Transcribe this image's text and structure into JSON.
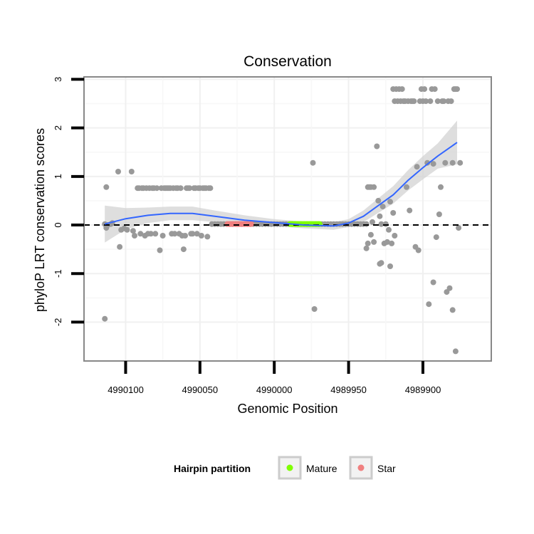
{
  "chart_data": {
    "type": "scatter",
    "title": "Conservation",
    "xlabel": "Genomic Position",
    "ylabel": "phyloP LRT conservation scores",
    "x_reversed": true,
    "xlim": [
      4990128,
      4989854
    ],
    "ylim": [
      -2.8,
      3.05
    ],
    "x_ticks": [
      4990100,
      4990050,
      4990000,
      4989950,
      4989900
    ],
    "x_tick_labels": [
      "4990100",
      "4990050",
      "4990000",
      "4989950",
      "4989900"
    ],
    "y_ticks": [
      -2,
      -1,
      0,
      1,
      2,
      3
    ],
    "y_tick_labels": [
      "-2",
      "-1",
      "0",
      "1",
      "2",
      "3"
    ],
    "reference_line": {
      "y": 0,
      "style": "dashed",
      "color": "#000000"
    },
    "grid": true,
    "legend": {
      "title": "Hairpin partition",
      "position": "bottom",
      "entries": [
        {
          "label": "Mature",
          "color": "#7FFF00"
        },
        {
          "label": "Star",
          "color": "#F08080"
        }
      ]
    },
    "colors": {
      "points": "#999999",
      "smooth": "#3366FF",
      "ribbon": "#D3D3D3",
      "mature": "#7FFF00",
      "star": "#F08080"
    },
    "series": [
      {
        "name": "scores",
        "type": "scatter",
        "points": [
          [
            4990114,
            -1.93
          ],
          [
            4990114,
            0.02
          ],
          [
            4990113,
            0.78
          ],
          [
            4990113,
            -0.06
          ],
          [
            4990112,
            0.0
          ],
          [
            4990110,
            0.02
          ],
          [
            4990109,
            0.04
          ],
          [
            4990105,
            1.1
          ],
          [
            4990104,
            -0.45
          ],
          [
            4990103,
            -0.1
          ],
          [
            4990101,
            -0.07
          ],
          [
            4990099,
            -0.1
          ],
          [
            4990096,
            1.1
          ],
          [
            4990095,
            -0.12
          ],
          [
            4990094,
            -0.22
          ],
          [
            4990092,
            0.76
          ],
          [
            4990091,
            0.76
          ],
          [
            4990090,
            -0.18
          ],
          [
            4990089,
            0.76
          ],
          [
            4990088,
            0.76
          ],
          [
            4990087,
            -0.22
          ],
          [
            4990086,
            0.76
          ],
          [
            4990085,
            -0.18
          ],
          [
            4990084,
            0.76
          ],
          [
            4990083,
            -0.18
          ],
          [
            4990082,
            0.76
          ],
          [
            4990081,
            0.76
          ],
          [
            4990080,
            -0.18
          ],
          [
            4990079,
            0.76
          ],
          [
            4990077,
            -0.52
          ],
          [
            4990076,
            0.76
          ],
          [
            4990075,
            -0.22
          ],
          [
            4990074,
            0.76
          ],
          [
            4990073,
            0.76
          ],
          [
            4990072,
            0.76
          ],
          [
            4990071,
            0.76
          ],
          [
            4990070,
            0.76
          ],
          [
            4990069,
            -0.18
          ],
          [
            4990068,
            0.76
          ],
          [
            4990067,
            -0.18
          ],
          [
            4990066,
            0.76
          ],
          [
            4990065,
            0.76
          ],
          [
            4990064,
            -0.18
          ],
          [
            4990063,
            0.76
          ],
          [
            4990062,
            -0.22
          ],
          [
            4990061,
            -0.5
          ],
          [
            4990060,
            -0.22
          ],
          [
            4990059,
            0.76
          ],
          [
            4990058,
            0.76
          ],
          [
            4990057,
            0.76
          ],
          [
            4990056,
            -0.18
          ],
          [
            4990055,
            -0.18
          ],
          [
            4990054,
            0.76
          ],
          [
            4990053,
            0.76
          ],
          [
            4990052,
            -0.18
          ],
          [
            4990051,
            0.76
          ],
          [
            4990050,
            0.76
          ],
          [
            4990049,
            -0.22
          ],
          [
            4990048,
            0.76
          ],
          [
            4990047,
            0.76
          ],
          [
            4990046,
            0.76
          ],
          [
            4990045,
            -0.24
          ],
          [
            4990044,
            0.76
          ],
          [
            4990043,
            0.76
          ],
          [
            4990042,
            0.02
          ],
          [
            4990040,
            0.02
          ],
          [
            4990038,
            0.02
          ],
          [
            4990036,
            0.02
          ],
          [
            4990034,
            0.02
          ],
          [
            4990032,
            0.02
          ],
          [
            4990030,
            0.02
          ],
          [
            4990028,
            0.02
          ],
          [
            4990026,
            0.02
          ],
          [
            4990024,
            0.02
          ],
          [
            4990022,
            0.02
          ],
          [
            4990020,
            0.02
          ],
          [
            4990018,
            0.02
          ],
          [
            4990016,
            0.02
          ],
          [
            4990014,
            0.02
          ],
          [
            4990012,
            0.02
          ],
          [
            4990010,
            0.02
          ],
          [
            4990008,
            0.02
          ],
          [
            4990006,
            0.02
          ],
          [
            4990004,
            0.02
          ],
          [
            4990002,
            0.02
          ],
          [
            4990000,
            0.02
          ],
          [
            4989998,
            0.02
          ],
          [
            4989996,
            0.02
          ],
          [
            4989994,
            0.02
          ],
          [
            4989992,
            0.02
          ],
          [
            4989990,
            0.02
          ],
          [
            4989988,
            0.02
          ],
          [
            4989986,
            0.02
          ],
          [
            4989984,
            0.02
          ],
          [
            4989982,
            0.02
          ],
          [
            4989980,
            0.02
          ],
          [
            4989978,
            0.02
          ],
          [
            4989976,
            0.02
          ],
          [
            4989974,
            0.02
          ],
          [
            4989972,
            0.02
          ],
          [
            4989970,
            0.02
          ],
          [
            4989968,
            0.02
          ],
          [
            4989966,
            0.02
          ],
          [
            4989964,
            0.02
          ],
          [
            4989962,
            0.02
          ],
          [
            4989960,
            0.02
          ],
          [
            4989958,
            0.02
          ],
          [
            4989956,
            0.02
          ],
          [
            4989954,
            0.02
          ],
          [
            4989952,
            0.02
          ],
          [
            4989950,
            0.02
          ],
          [
            4989948,
            0.02
          ],
          [
            4989946,
            0.02
          ],
          [
            4989944,
            0.02
          ],
          [
            4989942,
            0.02
          ],
          [
            4989940,
            0.02
          ],
          [
            4989938,
            0.02
          ],
          [
            4989938,
            -0.48
          ],
          [
            4989937,
            -0.38
          ],
          [
            4989937,
            0.78
          ],
          [
            4989936,
            0.78
          ],
          [
            4989935,
            0.78
          ],
          [
            4989935,
            -0.2
          ],
          [
            4989934,
            0.06
          ],
          [
            4989933,
            0.78
          ],
          [
            4989933,
            -0.35
          ],
          [
            4989931,
            1.62
          ],
          [
            4989930,
            0.5
          ],
          [
            4989929,
            0.18
          ],
          [
            4989929,
            -0.8
          ],
          [
            4989928,
            -0.78
          ],
          [
            4989928,
            0.02
          ],
          [
            4989927,
            0.38
          ],
          [
            4989926,
            -0.38
          ],
          [
            4989925,
            0.02
          ],
          [
            4989924,
            -0.35
          ],
          [
            4989923,
            -0.1
          ],
          [
            4989922,
            0.48
          ],
          [
            4989922,
            -0.85
          ],
          [
            4989921,
            -0.38
          ],
          [
            4989920,
            0.25
          ],
          [
            4989920,
            2.8
          ],
          [
            4989919,
            2.55
          ],
          [
            4989919,
            -0.22
          ],
          [
            4989918,
            2.8
          ],
          [
            4989917,
            2.55
          ],
          [
            4989916,
            2.8
          ],
          [
            4989915,
            2.55
          ],
          [
            4989914,
            2.8
          ],
          [
            4989913,
            2.55
          ],
          [
            4989912,
            2.55
          ],
          [
            4989911,
            0.78
          ],
          [
            4989910,
            2.55
          ],
          [
            4989909,
            0.3
          ],
          [
            4989908,
            2.55
          ],
          [
            4989907,
            2.55
          ],
          [
            4989906,
            2.55
          ],
          [
            4989905,
            -0.45
          ],
          [
            4989904,
            1.2
          ],
          [
            4989903,
            -0.52
          ],
          [
            4989902,
            2.55
          ],
          [
            4989901,
            2.8
          ],
          [
            4989900,
            2.55
          ],
          [
            4989899,
            2.8
          ],
          [
            4989898,
            2.55
          ],
          [
            4989897,
            1.28
          ],
          [
            4989896,
            -1.63
          ],
          [
            4989895,
            2.55
          ],
          [
            4989894,
            2.8
          ],
          [
            4989893,
            -1.18
          ],
          [
            4989893,
            1.26
          ],
          [
            4989892,
            2.8
          ],
          [
            4989891,
            -0.25
          ],
          [
            4989890,
            2.55
          ],
          [
            4989889,
            0.22
          ],
          [
            4989888,
            0.78
          ],
          [
            4989887,
            2.55
          ],
          [
            4989886,
            2.55
          ],
          [
            4989885,
            1.28
          ],
          [
            4989884,
            -1.38
          ],
          [
            4989883,
            2.55
          ],
          [
            4989882,
            -1.3
          ],
          [
            4989881,
            2.55
          ],
          [
            4989880,
            1.28
          ],
          [
            4989880,
            -1.75
          ],
          [
            4989879,
            2.8
          ],
          [
            4989878,
            -2.6
          ],
          [
            4989878,
            2.8
          ],
          [
            4989877,
            2.8
          ],
          [
            4989876,
            -0.06
          ],
          [
            4989875,
            1.28
          ],
          [
            4989974,
            1.28
          ],
          [
            4989973,
            -1.73
          ]
        ]
      },
      {
        "name": "Star",
        "type": "band",
        "x_range": [
          4990032,
          4990015
        ],
        "y": 0.02
      },
      {
        "name": "Mature",
        "type": "band",
        "x_range": [
          4989990,
          4989969
        ],
        "y": 0.02
      },
      {
        "name": "loess",
        "type": "line",
        "x": [
          4990114,
          4990100,
          4990085,
          4990070,
          4990055,
          4990040,
          4990020,
          4990000,
          4989980,
          4989960,
          4989950,
          4989940,
          4989930,
          4989920,
          4989910,
          4989900,
          4989890,
          4989877
        ],
        "y": [
          0.02,
          0.13,
          0.2,
          0.24,
          0.24,
          0.18,
          0.1,
          0.05,
          0.0,
          -0.02,
          0.04,
          0.18,
          0.4,
          0.62,
          0.92,
          1.18,
          1.42,
          1.7
        ],
        "ci_upper": [
          0.4,
          0.35,
          0.36,
          0.38,
          0.38,
          0.3,
          0.2,
          0.12,
          0.07,
          0.06,
          0.12,
          0.3,
          0.55,
          0.8,
          1.13,
          1.42,
          1.68,
          2.15
        ],
        "ci_lower": [
          -0.36,
          -0.09,
          0.04,
          0.1,
          0.1,
          0.06,
          0.0,
          -0.02,
          -0.07,
          -0.1,
          -0.04,
          0.06,
          0.25,
          0.44,
          0.71,
          0.94,
          1.16,
          1.25
        ]
      }
    ]
  }
}
